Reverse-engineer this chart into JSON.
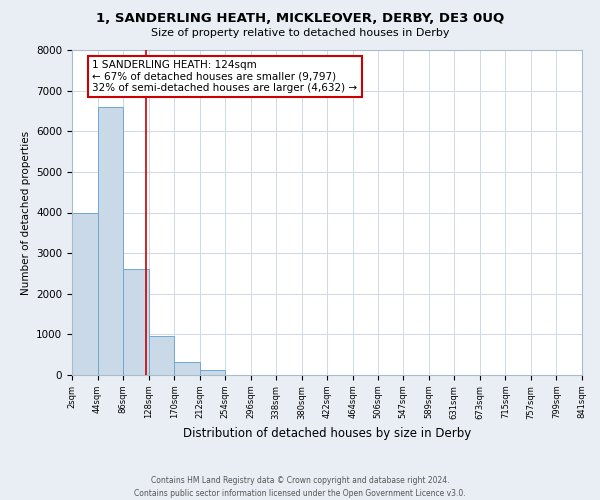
{
  "title": "1, SANDERLING HEATH, MICKLEOVER, DERBY, DE3 0UQ",
  "subtitle": "Size of property relative to detached houses in Derby",
  "xlabel": "Distribution of detached houses by size in Derby",
  "ylabel": "Number of detached properties",
  "bar_edges": [
    2,
    44,
    86,
    128,
    170,
    212,
    254,
    296,
    338,
    380,
    422,
    464,
    506,
    547,
    589,
    631,
    673,
    715,
    757,
    799,
    841
  ],
  "bar_heights": [
    4000,
    6600,
    2600,
    950,
    330,
    120,
    0,
    0,
    0,
    0,
    0,
    0,
    0,
    0,
    0,
    0,
    0,
    0,
    0,
    0
  ],
  "bar_color": "#c9d9e8",
  "bar_edgecolor": "#6fa8d0",
  "ylim": [
    0,
    8000
  ],
  "yticks": [
    0,
    1000,
    2000,
    3000,
    4000,
    5000,
    6000,
    7000,
    8000
  ],
  "property_line_x": 124,
  "property_line_color": "#cc0000",
  "annotation_title": "1 SANDERLING HEATH: 124sqm",
  "annotation_line1": "← 67% of detached houses are smaller (9,797)",
  "annotation_line2": "32% of semi-detached houses are larger (4,632) →",
  "annotation_box_color": "#cc0000",
  "annotation_bg": "#ffffff",
  "tick_labels": [
    "2sqm",
    "44sqm",
    "86sqm",
    "128sqm",
    "170sqm",
    "212sqm",
    "254sqm",
    "296sqm",
    "338sqm",
    "380sqm",
    "422sqm",
    "464sqm",
    "506sqm",
    "547sqm",
    "589sqm",
    "631sqm",
    "673sqm",
    "715sqm",
    "757sqm",
    "799sqm",
    "841sqm"
  ],
  "footer_line1": "Contains HM Land Registry data © Crown copyright and database right 2024.",
  "footer_line2": "Contains public sector information licensed under the Open Government Licence v3.0.",
  "background_color": "#e8eef4",
  "plot_bg": "#ffffff",
  "grid_color": "#d0d8e4"
}
